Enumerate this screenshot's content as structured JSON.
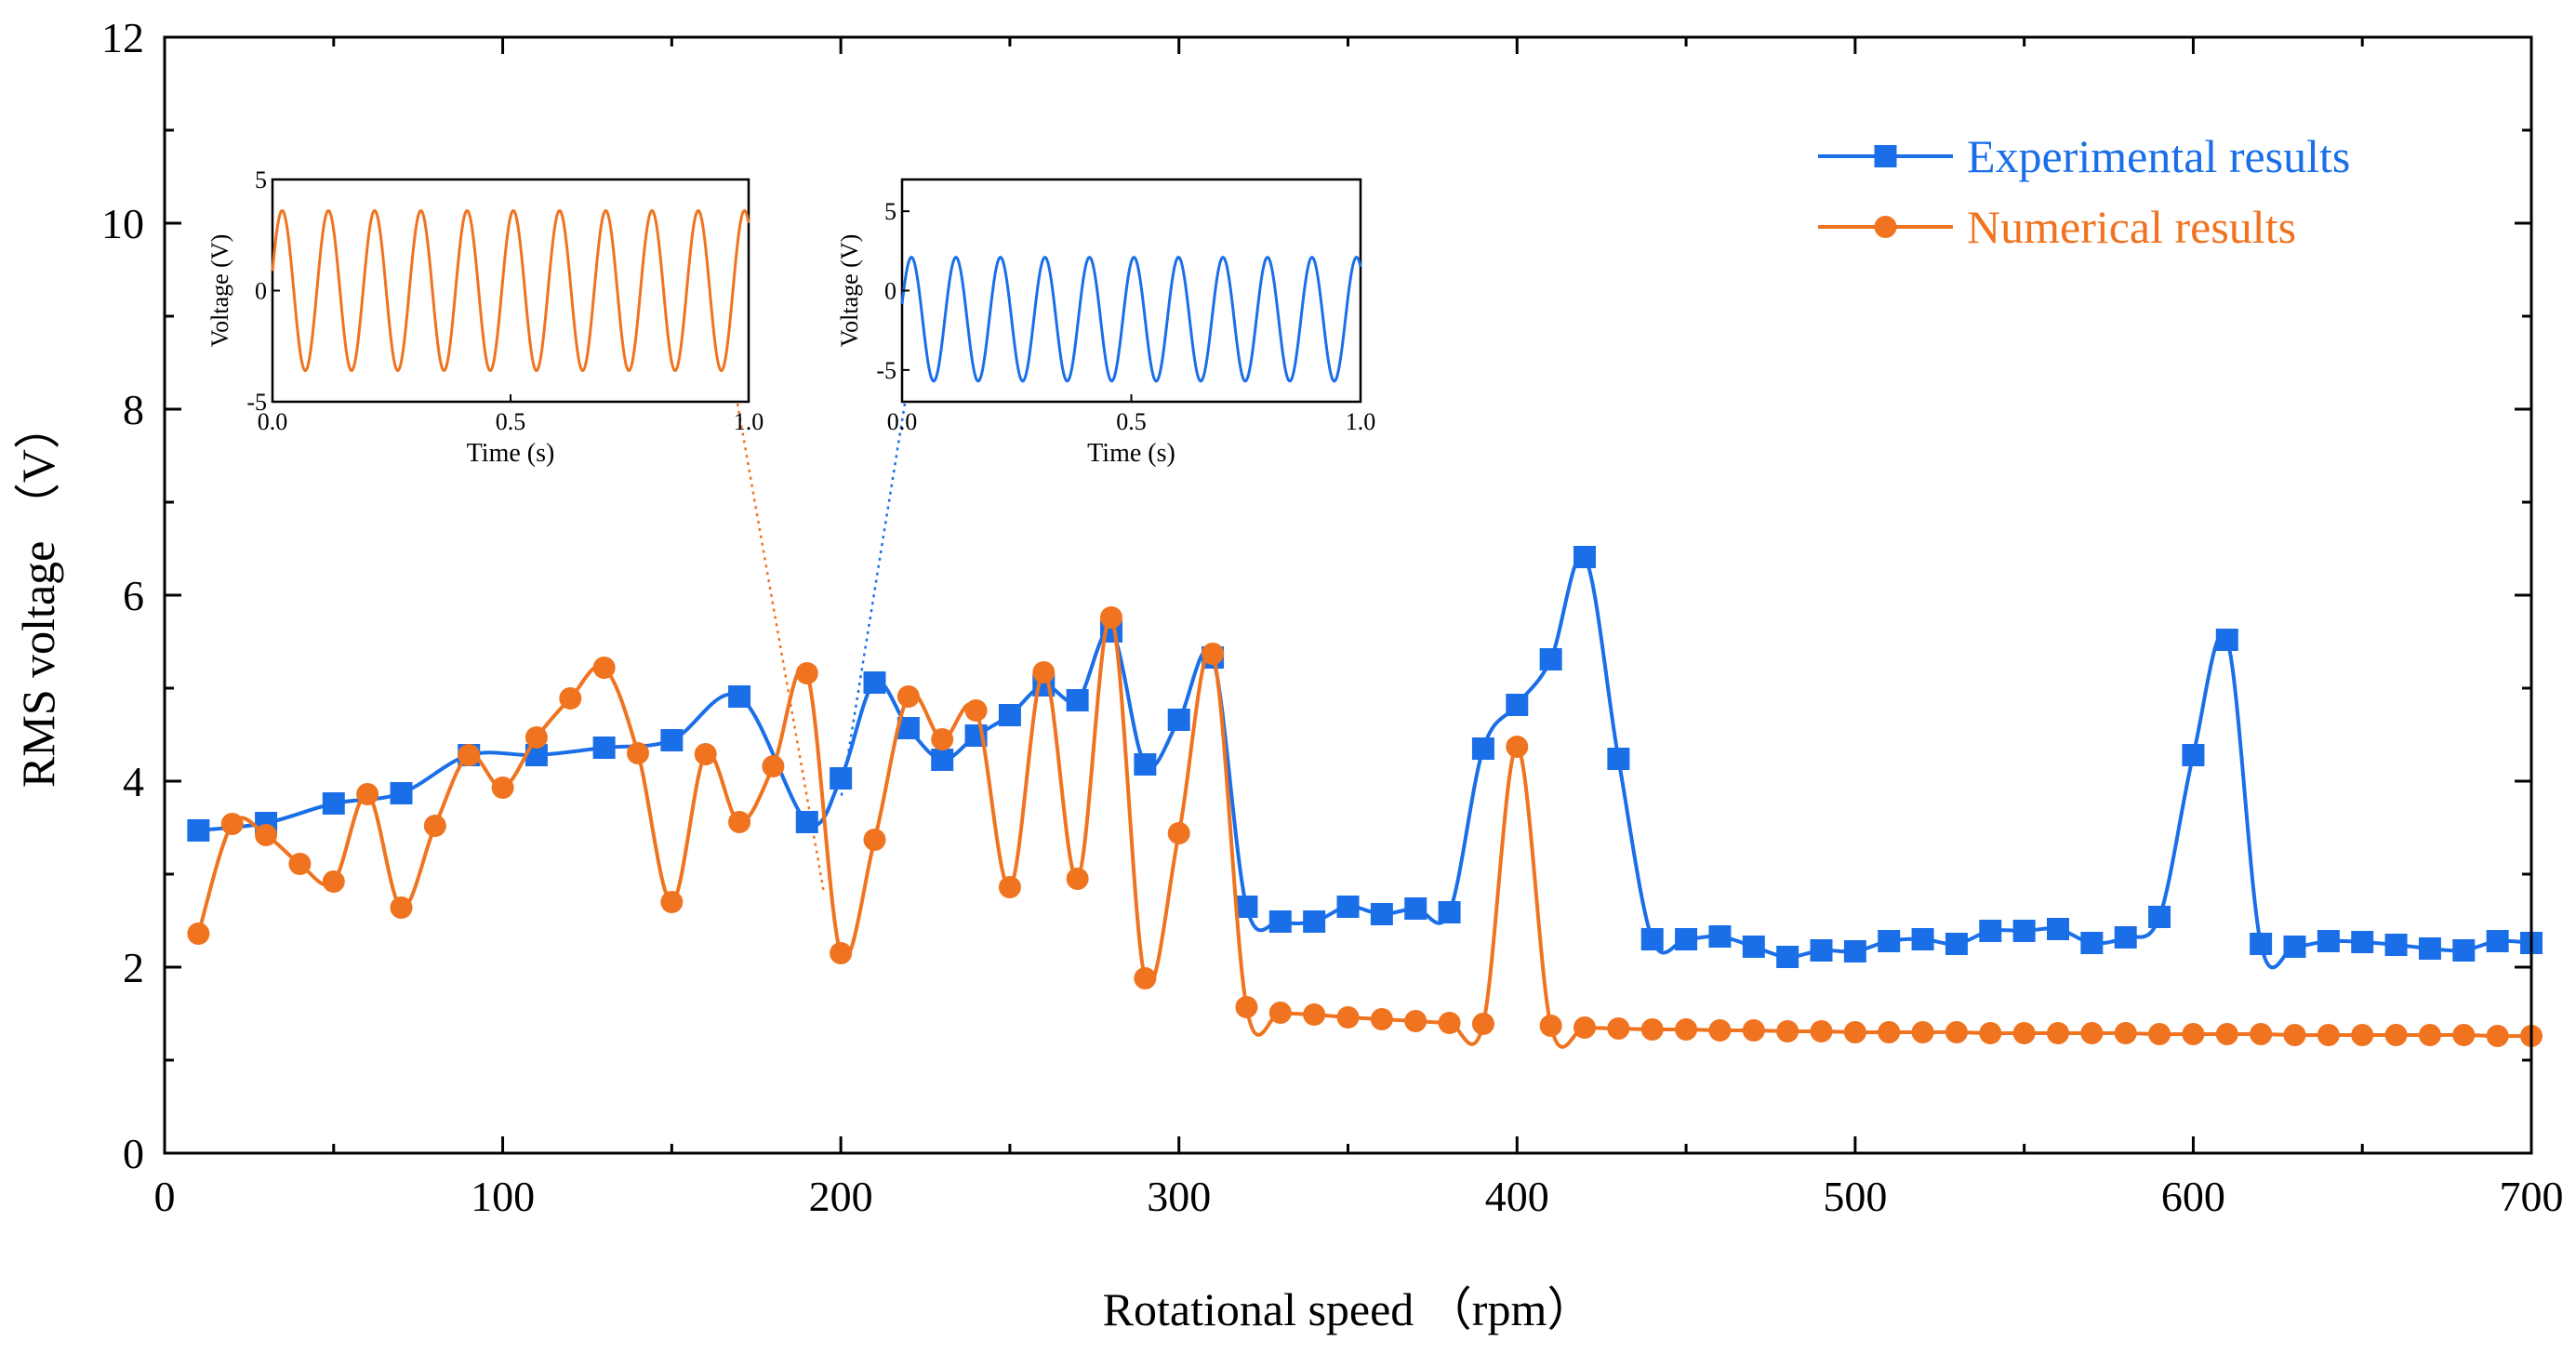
{
  "chart_data": {
    "type": "line",
    "xlabel": "Rotational speed （rpm）",
    "ylabel": "RMS voltage （V）",
    "xlim": [
      0,
      700
    ],
    "ylim": [
      0,
      12
    ],
    "xticks": [
      0,
      100,
      200,
      300,
      400,
      500,
      600,
      700
    ],
    "xtick_labels": [
      "0",
      "100",
      "200",
      "300",
      "400",
      "500",
      "600",
      "700"
    ],
    "yticks": [
      0,
      2,
      4,
      6,
      8,
      10,
      12
    ],
    "ytick_labels": [
      "0",
      "2",
      "4",
      "6",
      "8",
      "10",
      "12"
    ],
    "grid": false,
    "legend_position": "top-right",
    "series": [
      {
        "name": "Experimental results",
        "color": "#1a6fe8",
        "marker": "square",
        "x": [
          10,
          30,
          50,
          70,
          90,
          110,
          130,
          150,
          170,
          190,
          200,
          210,
          220,
          230,
          240,
          250,
          260,
          270,
          280,
          290,
          300,
          310,
          320,
          330,
          340,
          350,
          360,
          370,
          380,
          390,
          400,
          410,
          420,
          430,
          440,
          450,
          460,
          470,
          480,
          490,
          500,
          510,
          520,
          530,
          540,
          550,
          560,
          570,
          580,
          590,
          600,
          610,
          620,
          630,
          640,
          650,
          660,
          670,
          680,
          690,
          700
        ],
        "y": [
          3.47,
          3.55,
          3.76,
          3.87,
          4.28,
          4.28,
          4.36,
          4.44,
          4.91,
          3.56,
          4.03,
          5.06,
          4.57,
          4.23,
          4.49,
          4.71,
          5.03,
          4.87,
          5.61,
          4.18,
          4.66,
          5.33,
          2.65,
          2.49,
          2.49,
          2.65,
          2.57,
          2.63,
          2.59,
          4.35,
          4.82,
          5.31,
          6.41,
          4.24,
          2.3,
          2.3,
          2.33,
          2.22,
          2.11,
          2.18,
          2.17,
          2.28,
          2.3,
          2.25,
          2.39,
          2.39,
          2.41,
          2.26,
          2.32,
          2.54,
          4.28,
          5.52,
          2.25,
          2.22,
          2.28,
          2.27,
          2.24,
          2.2,
          2.18,
          2.28,
          2.26
        ]
      },
      {
        "name": "Numerical results",
        "color": "#f07320",
        "marker": "circle",
        "x": [
          10,
          20,
          30,
          40,
          50,
          60,
          70,
          80,
          90,
          100,
          110,
          120,
          130,
          140,
          150,
          160,
          170,
          180,
          190,
          200,
          210,
          220,
          230,
          240,
          250,
          260,
          270,
          280,
          290,
          300,
          310,
          320,
          330,
          340,
          350,
          360,
          370,
          380,
          390,
          400,
          410,
          420,
          430,
          440,
          450,
          460,
          470,
          480,
          490,
          500,
          510,
          520,
          530,
          540,
          550,
          560,
          570,
          580,
          590,
          600,
          610,
          620,
          630,
          640,
          650,
          660,
          670,
          680,
          690,
          700
        ],
        "y": [
          2.36,
          3.54,
          3.42,
          3.11,
          2.92,
          3.86,
          2.64,
          3.52,
          4.28,
          3.93,
          4.47,
          4.89,
          5.22,
          4.3,
          2.7,
          4.29,
          3.56,
          4.16,
          5.16,
          2.15,
          3.37,
          4.91,
          4.45,
          4.76,
          2.86,
          5.17,
          2.95,
          5.76,
          1.88,
          3.44,
          5.37,
          1.57,
          1.51,
          1.49,
          1.46,
          1.44,
          1.42,
          1.4,
          1.39,
          4.37,
          1.37,
          1.35,
          1.34,
          1.33,
          1.33,
          1.32,
          1.32,
          1.31,
          1.31,
          1.3,
          1.3,
          1.3,
          1.3,
          1.29,
          1.29,
          1.29,
          1.29,
          1.29,
          1.28,
          1.28,
          1.28,
          1.28,
          1.27,
          1.27,
          1.27,
          1.27,
          1.27,
          1.27,
          1.26,
          1.26
        ]
      }
    ],
    "insets": [
      {
        "name": "numerical-waveform-inset",
        "color": "#f07320",
        "type": "line",
        "xlabel": "Time (s)",
        "ylabel": "Voltage (V)",
        "xlim": [
          0.0,
          1.0
        ],
        "ylim": [
          -5,
          5
        ],
        "xtick_labels": [
          "0.0",
          "0.5",
          "1.0"
        ],
        "xticks": [
          0.0,
          0.5,
          1.0
        ],
        "ytick_labels": [
          "-5",
          "0",
          "5"
        ],
        "yticks": [
          -5,
          0,
          5
        ],
        "cycles": 10.3,
        "amplitude": 3.6,
        "offset": 0.0,
        "connector_to_x": 195
      },
      {
        "name": "experimental-waveform-inset",
        "color": "#1a6fe8",
        "type": "line",
        "xlabel": "Time (s)",
        "ylabel": "Voltage (V)",
        "xlim": [
          0.0,
          1.0
        ],
        "ylim": [
          -7,
          7
        ],
        "xtick_labels": [
          "0.0",
          "0.5",
          "1.0"
        ],
        "xticks": [
          0.0,
          0.5,
          1.0
        ],
        "ytick_labels": [
          "-5",
          "0",
          "5"
        ],
        "yticks": [
          -5,
          0,
          5
        ],
        "cycles": 10.3,
        "amplitude": 3.9,
        "offset": -1.8,
        "connector_to_x": 200
      }
    ]
  }
}
